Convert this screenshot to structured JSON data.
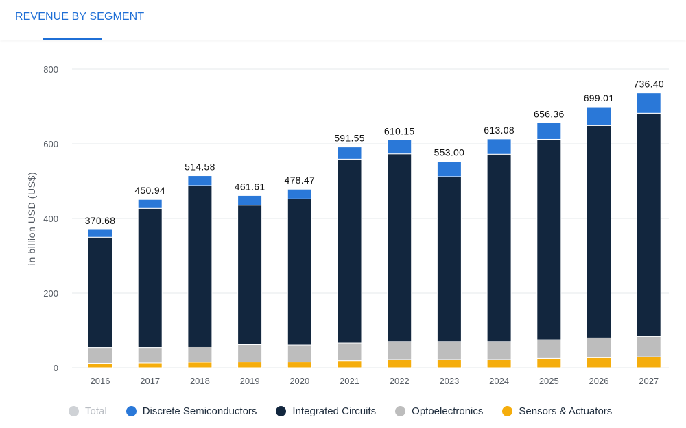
{
  "header": {
    "tab_label": "REVENUE BY SEGMENT"
  },
  "legend": {
    "items": [
      {
        "label": "Total",
        "color": "#cfd2d6",
        "disabled": true
      },
      {
        "label": "Discrete Semiconductors",
        "color": "#2a78d8"
      },
      {
        "label": "Integrated Circuits",
        "color": "#12263e"
      },
      {
        "label": "Optoelectronics",
        "color": "#bdbdbd"
      },
      {
        "label": "Sensors & Actuators",
        "color": "#f5ad0c"
      }
    ]
  },
  "chart_data": {
    "type": "bar",
    "stacked": true,
    "ylabel": "in billion USD (US$)",
    "ylim": [
      0,
      800
    ],
    "yticks": [
      "0",
      "200",
      "400",
      "600",
      "800"
    ],
    "grid": true,
    "legend_position": "bottom",
    "categories": [
      "2016",
      "2017",
      "2018",
      "2019",
      "2020",
      "2021",
      "2022",
      "2023",
      "2024",
      "2025",
      "2026",
      "2027"
    ],
    "totals": [
      "370.68",
      "450.94",
      "514.58",
      "461.61",
      "478.47",
      "591.55",
      "610.15",
      "553.00",
      "613.08",
      "656.36",
      "699.01",
      "736.40"
    ],
    "series": [
      {
        "name": "Sensors & Actuators",
        "color": "#f5ad0c",
        "values": [
          12.0,
          13.0,
          15.0,
          15.5,
          15.5,
          19.0,
          22.0,
          22.0,
          22.0,
          25.0,
          27.0,
          29.0
        ]
      },
      {
        "name": "Optoelectronics",
        "color": "#bdbdbd",
        "values": [
          42.0,
          41.0,
          41.0,
          46.0,
          45.0,
          47.0,
          48.0,
          48.0,
          48.0,
          50.0,
          53.0,
          55.0
        ]
      },
      {
        "name": "Integrated Circuits",
        "color": "#12263e",
        "values": [
          296.0,
          373.0,
          432.0,
          374.0,
          392.0,
          493.0,
          503.0,
          442.0,
          502.0,
          537.0,
          569.0,
          598.0
        ]
      },
      {
        "name": "Discrete Semiconductors",
        "color": "#2a78d8",
        "values": [
          20.68,
          23.94,
          26.58,
          26.11,
          25.97,
          32.55,
          37.15,
          41.0,
          41.08,
          44.36,
          50.01,
          54.4
        ]
      }
    ]
  }
}
